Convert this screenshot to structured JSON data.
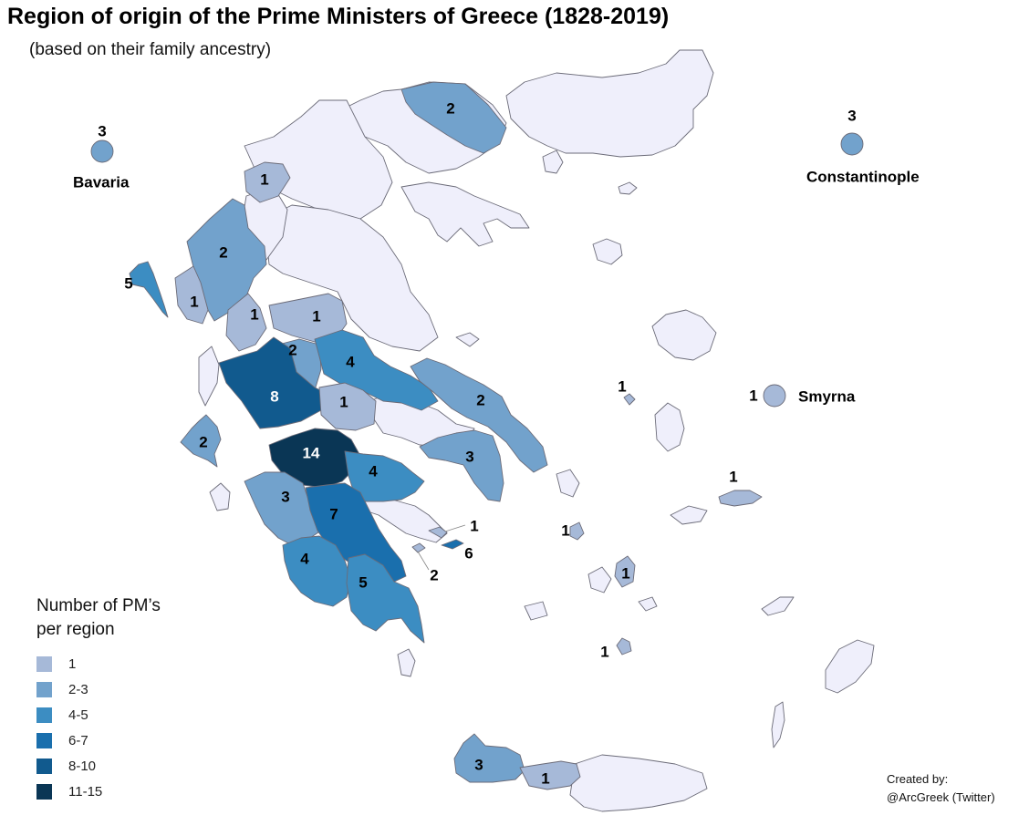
{
  "map": {
    "title": "Region of origin of the Prime Ministers of Greece (1828-2019)",
    "subtitle": "(based on their family ancestry)"
  },
  "colors": {
    "none": "#efeffb",
    "c1": "#a6b9d8",
    "c2_3": "#72a2cc",
    "c4_5": "#3c8dc2",
    "c6_7": "#1a6fad",
    "c8_10": "#115a8e",
    "c11_15": "#0a3655",
    "border": "#6b6b78"
  },
  "external_places": [
    {
      "name": "Bavaria",
      "count": 3
    },
    {
      "name": "Constantinople",
      "count": 3
    },
    {
      "name": "Smyrna",
      "count": 1
    }
  ],
  "region_counts": [
    "1",
    "2",
    "5",
    "2",
    "1",
    "1",
    "1",
    "2",
    "4",
    "8",
    "1",
    "2",
    "2",
    "14",
    "4",
    "3",
    "3",
    "7",
    "4",
    "5",
    "1",
    "6",
    "2",
    "1",
    "1",
    "1",
    "1",
    "1",
    "3",
    "1"
  ],
  "legend": {
    "title": "Number of PM’s per region",
    "items": [
      {
        "label": "1",
        "color_key": "c1"
      },
      {
        "label": "2-3",
        "color_key": "c2_3"
      },
      {
        "label": "4-5",
        "color_key": "c4_5"
      },
      {
        "label": "6-7",
        "color_key": "c6_7"
      },
      {
        "label": "8-10",
        "color_key": "c8_10"
      },
      {
        "label": "11-15",
        "color_key": "c11_15"
      }
    ]
  },
  "credit": {
    "line1": "Created by:",
    "line2": "@ArcGreek (Twitter)"
  }
}
